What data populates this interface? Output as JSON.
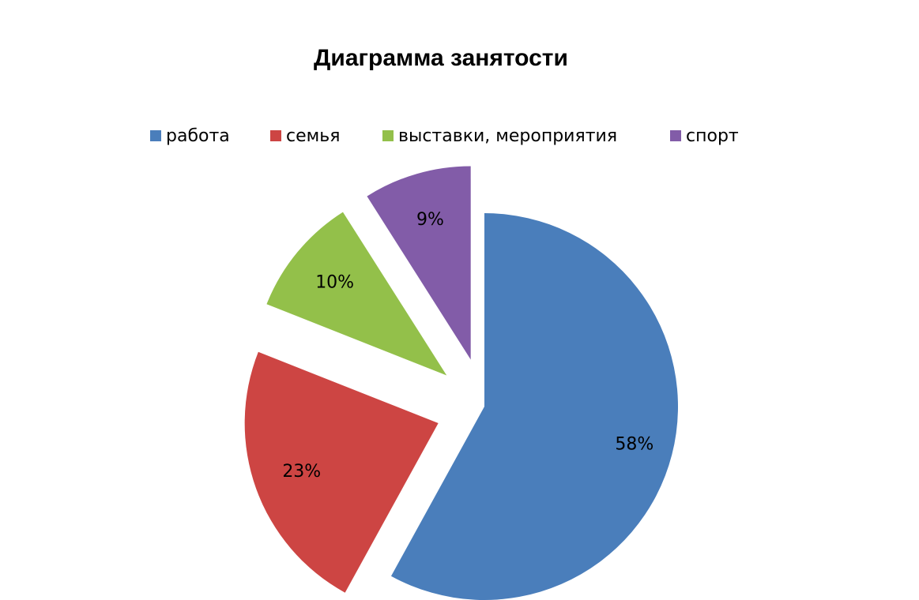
{
  "chart_data": {
    "type": "pie",
    "title": "Диаграмма занятости",
    "categories": [
      "работа",
      "семья",
      "выставки, мероприятия",
      "спорт"
    ],
    "values": [
      58,
      23,
      10,
      9
    ],
    "value_labels": [
      "58%",
      "23%",
      "10%",
      "9%"
    ],
    "colors": [
      "#4a7ebb",
      "#cd4543",
      "#93c04a",
      "#825ca8"
    ],
    "legend": "top"
  }
}
